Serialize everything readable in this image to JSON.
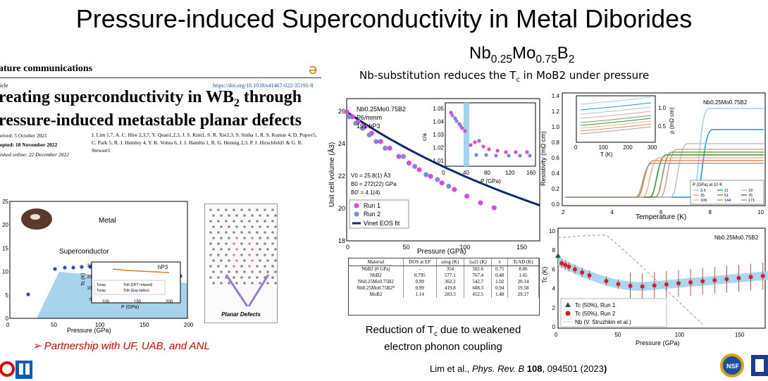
{
  "slide": {
    "title": "Pressure-induced Superconductivity in Metal Diborides",
    "formula": {
      "nb": "Nb",
      "nb_sub": "0.25",
      "mo": "Mo",
      "mo_sub": "0.75",
      "b": "B",
      "b_sub": "2"
    },
    "subtitle_pre": "Nb-substitution reduces the T",
    "subtitle_sub": "c",
    "subtitle_post": " in MoB2 under pressure",
    "partnership": "➢ Partnership with UF, UAB, and ANL",
    "caption_pre": "Reduction of T",
    "caption_sub": "c",
    "caption_post": " due to weakened electron phonon coupling",
    "citation_authors": "Lim et al., ",
    "citation_journal": "Phys. Rev. B ",
    "citation_volume": "108",
    "citation_rest": ", 094501 (2023",
    "citation_close": ")"
  },
  "paper": {
    "journal": "ature communications",
    "article_label": "icle",
    "doi": "https://doi.org/10.1038/s41467-022-35191-8",
    "title_line1": "reating superconductivity in WB",
    "title_sub": "2",
    "title_line1_end": " through",
    "title_line2": "ressure-induced metastable planar defects",
    "received": "eived: 5 October 2021",
    "accepted": "epted: 18 November 2022",
    "published": "ished online: 22 December 2022",
    "authors": "J. Lim 1,7, A. C. Hire 2,3,7, Y. Quan1,2,3, J. S. Kim1, S. R. Xie2,3, S. Sinha 1, R. S. Kumar 4, D. Popov5, C. Park 5, R. J. Hemley 4, Y. K. Vohra 6, J. J. Hamlin 1, R. G. Hennig 2,3, P. J. Hirschfeld1 & G. R. Stewart1",
    "planar_label": "Planar Defects"
  },
  "phase_diagram": {
    "metal_label": "Metal",
    "sc_label": "Superconductor",
    "xlabel": "Pressure (GPa)",
    "x_ticks": [
      "0",
      "50",
      "100",
      "150",
      "200"
    ],
    "y_ticks": [
      "0",
      "5",
      "10",
      "15",
      "20",
      "25"
    ],
    "inset": {
      "label": "hP3",
      "ylabel": "Tc (K)",
      "xlabel": "P (GPa)",
      "x_ticks": [
        "100",
        "150",
        "200"
      ],
      "y_ticks": [
        "0",
        "10",
        "20",
        "30"
      ],
      "legend": [
        "Tcexp",
        "Tcth (DFT relaxed)",
        "Tcexp",
        "Tcth (Exp lattice)"
      ]
    }
  },
  "volume_chart": {
    "formula_line": "Nb0.25Mo0.75B2",
    "space_group": "P6/mmm",
    "pearson": "191 hP3",
    "v0": "V0 = 25.8(1) Å3",
    "b0": "B0 = 272(22) GPa",
    "b0p": "B0' = 4.1(4)",
    "ylabel": "Unit cell volume (Å3)",
    "xlabel": "Pressure (GPa)",
    "x_ticks": [
      "0",
      "50",
      "100",
      "150"
    ],
    "y_ticks": [
      "18",
      "20",
      "22",
      "24",
      "26"
    ],
    "legend": [
      "Run 1",
      "Run 2",
      "Vinet EOS fit"
    ],
    "inset": {
      "ylabel": "c/a",
      "xlabel": "P (GPa)",
      "x_ticks": [
        "0",
        "40",
        "80",
        "120",
        "160"
      ],
      "y_ticks": [
        "1.01",
        "1.02",
        "1.03",
        "1.04",
        "1.05"
      ]
    }
  },
  "table": {
    "headers": [
      "Material",
      "DOS at EF",
      "ωlog (K)",
      "⟨ω2⟩ (K)",
      "λ",
      "TcAD (K)"
    ],
    "rows": [
      [
        "NbB2 (0 GPa)",
        "-",
        "354",
        "502.6",
        "0.75",
        "8.86"
      ],
      [
        "NbB2",
        "0.795",
        "577.1",
        "767.4",
        "0.48",
        "1.65"
      ],
      [
        "Nb0.25Mo0.75B2",
        "0.99",
        "362.2",
        "542.7",
        "1.02",
        "20.14"
      ],
      [
        "Nb0.25Mo0.75B2*",
        "0.99",
        "419.8",
        "608.3",
        "0.94",
        "19.58"
      ],
      [
        "MoB2",
        "1.14",
        "283.3",
        "452.5",
        "1.48",
        "29.17"
      ]
    ]
  },
  "resistivity_chart": {
    "label": "Nb0.25Mo0.75B2",
    "ylabel": "Resistivity (mΩ cm)",
    "xlabel": "Temperature (K)",
    "x_ticks": [
      "2",
      "4",
      "6",
      "8",
      "10"
    ],
    "y_ticks": [
      "0.0",
      "0.2",
      "0.4",
      "0.6",
      "0.8",
      "1.0",
      "1.2",
      "1.4"
    ],
    "inset": {
      "ylabel": "ρ (mΩ cm)",
      "xlabel": "T (K)",
      "x_ticks": [
        "0",
        "100",
        "200",
        "300"
      ],
      "y_ticks": [
        "0.5",
        "1.0"
      ]
    },
    "legend_title": "P (GPa) at 10 K",
    "legend": [
      "3.5",
      "11",
      "19",
      "35",
      "51",
      "76",
      "109",
      "144",
      "171"
    ]
  },
  "tc_chart": {
    "label": "Nb0.25Mo0.75B2",
    "ylabel": "Tc (K)",
    "xlabel": "Pressure (GPa)",
    "x_ticks": [
      "0",
      "50",
      "100",
      "150"
    ],
    "y_ticks": [
      "0",
      "2",
      "4",
      "6",
      "8",
      "10"
    ],
    "legend": [
      "Tc (50%), Run 1",
      "Tc (50%), Run 2",
      "Nb (V. Struzhkin et al.)"
    ]
  },
  "colors": {
    "accent_red": "#e00000",
    "ub_blue": "#005bbb",
    "fit_navy": "#0b2a6f",
    "band_blue": "#9fd3ee"
  }
}
